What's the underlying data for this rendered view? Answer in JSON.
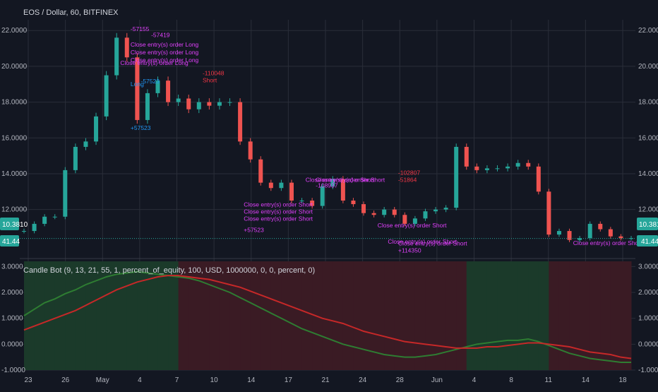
{
  "header": {
    "symbol_title": "EOS / Dollar, 60, BITFINEX",
    "indicator_title": "Candle Bot (9, 13, 21, 55, 1, percent_of_equity, 100, USD, 1000000, 0, 0, percent, 0)"
  },
  "price_badges": {
    "last_price": "10.3810",
    "indicator_value": "41.44"
  },
  "colors": {
    "background": "#131722",
    "grid": "#2a2e39",
    "candle_up": "#26a69a",
    "candle_down": "#ef5350",
    "long_marker": "#2196f3",
    "short_marker": "#f23645",
    "close_marker": "#e040fb",
    "badge": "#26a69a",
    "green_line": "#2e7d32",
    "red_line": "#c62828",
    "green_zone": "#1b3a2a",
    "red_zone": "#3a1b24"
  },
  "chart_data": [
    {
      "type": "line",
      "title": "EOS / Dollar, 60, BITFINEX",
      "x_tick_labels": [
        "23",
        "26",
        "May",
        "4",
        "7",
        "10",
        "14",
        "17",
        "21",
        "24",
        "28",
        "Jun",
        "4",
        "8",
        "11",
        "14",
        "18"
      ],
      "y_tick_labels": [
        "22.0000",
        "20.0000",
        "18.0000",
        "16.0000",
        "14.0000",
        "12.0000"
      ],
      "ylim": [
        9.5,
        22.6
      ],
      "grid": true,
      "last_value": 10.381,
      "x": [
        "21",
        "22",
        "23",
        "24",
        "25",
        "26",
        "27",
        "28",
        "29",
        "30",
        "May 1",
        "2",
        "3",
        "4",
        "5",
        "6",
        "7",
        "8",
        "9",
        "10",
        "11",
        "12",
        "13",
        "14",
        "15",
        "16",
        "17",
        "18",
        "19",
        "20",
        "21",
        "22",
        "23",
        "24",
        "25",
        "26",
        "27",
        "28",
        "29",
        "30",
        "31",
        "Jun 1",
        "2",
        "3",
        "4",
        "5",
        "6",
        "7",
        "8",
        "9",
        "10",
        "11",
        "12",
        "13",
        "14",
        "15",
        "16",
        "17",
        "18",
        "19"
      ],
      "values": [
        10.8,
        11.2,
        11.6,
        11.6,
        14.2,
        15.5,
        15.8,
        17.2,
        19.5,
        21.6,
        20.5,
        17.0,
        18.5,
        19.2,
        18.0,
        18.2,
        17.6,
        18.0,
        17.8,
        18.0,
        18.0,
        15.8,
        14.8,
        13.5,
        13.2,
        13.5,
        12.5,
        12.5,
        12.2,
        13.3,
        13.7,
        12.5,
        12.3,
        11.8,
        11.7,
        12.0,
        11.7,
        11.2,
        11.5,
        11.9,
        12.0,
        12.1,
        15.5,
        14.4,
        14.2,
        14.3,
        14.3,
        14.4,
        14.6,
        14.4,
        13.0,
        10.6,
        10.8,
        10.3,
        10.4,
        11.2,
        10.9,
        10.5,
        10.4,
        10.4
      ],
      "annotations": [
        {
          "text": "-57155",
          "color": "#e040fb"
        },
        {
          "text": "-57419",
          "color": "#e040fb"
        },
        {
          "text": "Close entry(s) order Long",
          "color": "#e040fb"
        },
        {
          "text": "Close entry(s) order Long",
          "color": "#e040fb"
        },
        {
          "text": "Close entry(s) order Long",
          "color": "#e040fb"
        },
        {
          "text": "Close entry(s) order Long",
          "color": "#e040fb"
        },
        {
          "text": "Long",
          "color": "#2196f3"
        },
        {
          "text": "-57523",
          "color": "#2196f3"
        },
        {
          "text": "+57523",
          "color": "#2196f3"
        },
        {
          "text": "-110048",
          "color": "#f23645"
        },
        {
          "text": "Short",
          "color": "#f23645"
        },
        {
          "text": "Close entry(s) order Short",
          "color": "#e040fb"
        },
        {
          "text": "Close entry(s) order Short",
          "color": "#e040fb"
        },
        {
          "text": "Close entry(s) order Short",
          "color": "#e040fb"
        },
        {
          "text": "+57523",
          "color": "#e040fb"
        },
        {
          "text": "Close entry(s) order Short",
          "color": "#e040fb"
        },
        {
          "text": "Close entry(s) order Short",
          "color": "#e040fb"
        },
        {
          "text": "-108937",
          "color": "#e040fb"
        },
        {
          "text": "-102807",
          "color": "#f23645"
        },
        {
          "text": "-51864",
          "color": "#f23645"
        },
        {
          "text": "Close entry(s) order Short",
          "color": "#e040fb"
        },
        {
          "text": "Close entry(s) order Short",
          "color": "#e040fb"
        },
        {
          "text": "Close entry(s) order Short",
          "color": "#e040fb"
        },
        {
          "text": "+114350",
          "color": "#e040fb"
        },
        {
          "text": "Close entry(s) order Short",
          "color": "#e040fb"
        }
      ]
    },
    {
      "type": "line",
      "title": "Candle Bot (9, 13, 21, 55, 1, percent_of_equity, 100, USD, 1000000, 0, 0, percent, 0)",
      "y_tick_labels": [
        "3.0000",
        "2.0000",
        "1.0000",
        "0.0000",
        "-1.0000"
      ],
      "ylim": [
        -1.0,
        3.2
      ],
      "grid": true,
      "x": [
        "21",
        "22",
        "23",
        "24",
        "25",
        "26",
        "27",
        "28",
        "29",
        "30",
        "May 1",
        "2",
        "3",
        "4",
        "5",
        "6",
        "7",
        "8",
        "9",
        "10",
        "11",
        "12",
        "13",
        "14",
        "15",
        "16",
        "17",
        "18",
        "19",
        "20",
        "21",
        "22",
        "23",
        "24",
        "25",
        "26",
        "27",
        "28",
        "29",
        "30",
        "31",
        "Jun 1",
        "2",
        "3",
        "4",
        "5",
        "6",
        "7",
        "8",
        "9",
        "10",
        "11",
        "12",
        "13",
        "14",
        "15",
        "16",
        "17",
        "18",
        "19"
      ],
      "series": [
        {
          "values": [
            1.1,
            1.35,
            1.6,
            1.75,
            1.95,
            2.1,
            2.3,
            2.45,
            2.6,
            2.7,
            2.75,
            2.8,
            2.75,
            2.7,
            2.65,
            2.6,
            2.55,
            2.45,
            2.3,
            2.15,
            2.0,
            1.8,
            1.6,
            1.4,
            1.2,
            1.0,
            0.8,
            0.6,
            0.45,
            0.3,
            0.15,
            0.0,
            -0.1,
            -0.2,
            -0.3,
            -0.4,
            -0.45,
            -0.5,
            -0.5,
            -0.45,
            -0.4,
            -0.3,
            -0.2,
            -0.1,
            0.0,
            0.05,
            0.1,
            0.15,
            0.15,
            0.2,
            0.1,
            -0.05,
            -0.2,
            -0.35,
            -0.45,
            -0.55,
            -0.6,
            -0.65,
            -0.7,
            -0.7
          ]
        },
        {
          "values": [
            0.55,
            0.7,
            0.85,
            1.0,
            1.15,
            1.3,
            1.5,
            1.7,
            1.9,
            2.1,
            2.25,
            2.4,
            2.5,
            2.6,
            2.65,
            2.65,
            2.6,
            2.55,
            2.5,
            2.4,
            2.3,
            2.2,
            2.05,
            1.9,
            1.75,
            1.6,
            1.45,
            1.3,
            1.15,
            1.0,
            0.9,
            0.8,
            0.65,
            0.5,
            0.4,
            0.3,
            0.2,
            0.1,
            0.05,
            0.0,
            -0.05,
            -0.1,
            -0.15,
            -0.15,
            -0.15,
            -0.1,
            -0.1,
            -0.05,
            0.0,
            0.05,
            0.05,
            0.0,
            -0.05,
            -0.1,
            -0.2,
            -0.3,
            -0.35,
            -0.4,
            -0.5,
            -0.55
          ]
        }
      ]
    }
  ]
}
